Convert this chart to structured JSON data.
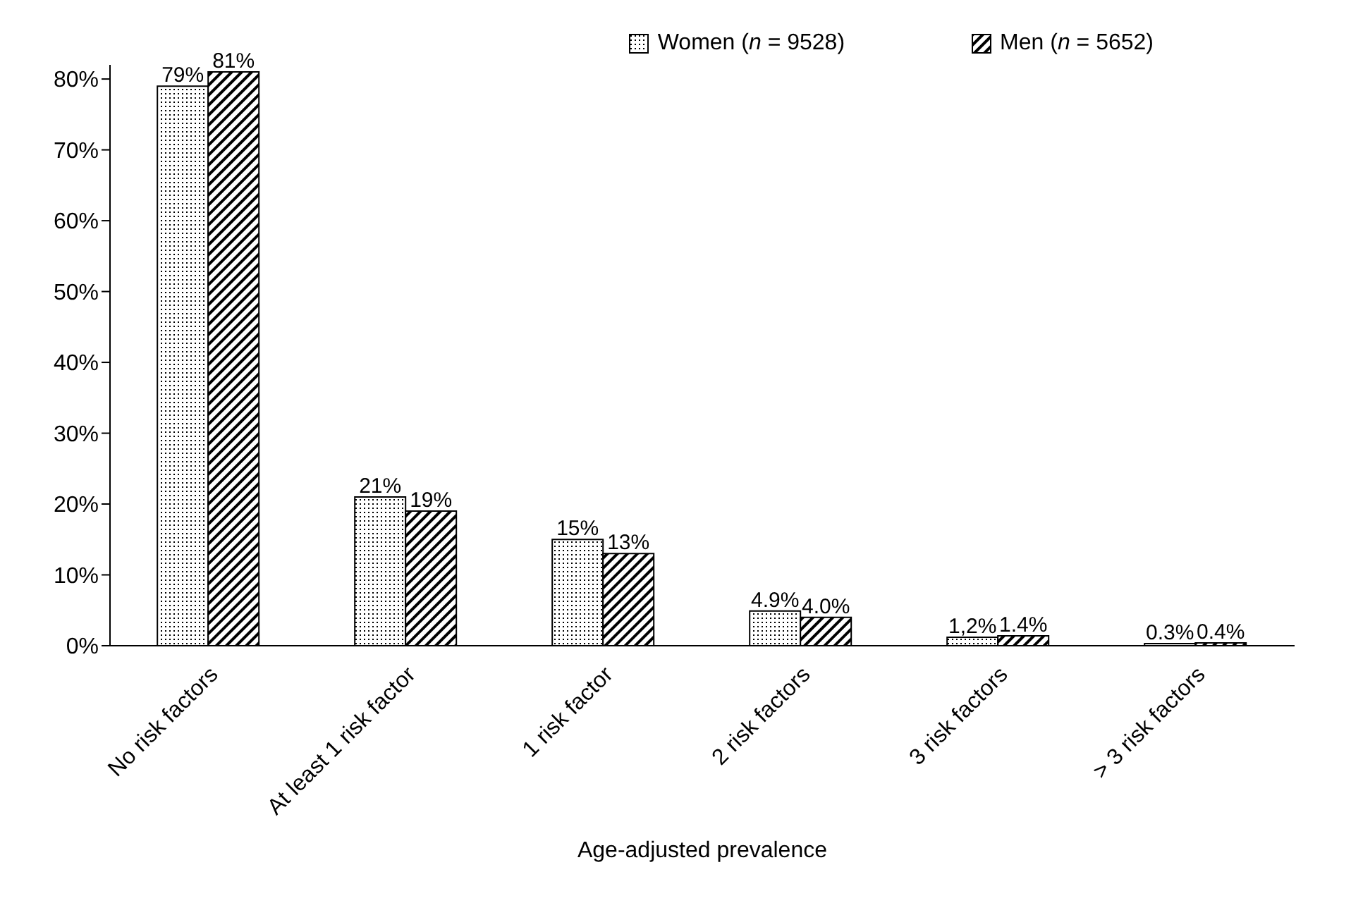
{
  "chart_data": {
    "type": "bar",
    "categories": [
      "No risk factors",
      "At least 1 risk factor",
      "1 risk factor",
      "2 risk factors",
      "3 risk factors",
      "> 3 risk factors"
    ],
    "series": [
      {
        "name": "Women (n = 9528)",
        "color": "#000000",
        "values": [
          79,
          21,
          15,
          4.9,
          1.2,
          0.3
        ],
        "value_labels": [
          "79%",
          "21%",
          "15%",
          "4.9%",
          "1,2%",
          "0.3%"
        ]
      },
      {
        "name": "Men (n = 5652)",
        "color": "#000000",
        "values": [
          81,
          19,
          13,
          4.0,
          1.4,
          0.4
        ],
        "value_labels": [
          "81%",
          "19%",
          "13%",
          "4.0%",
          "1.4%",
          "0.4%"
        ]
      }
    ],
    "xlabel": "Age-adjusted prevalence",
    "ylim": [
      0,
      82
    ],
    "yticks": [
      {
        "value": 0,
        "label": "0%"
      },
      {
        "value": 10,
        "label": "10%"
      },
      {
        "value": 20,
        "label": "20%"
      },
      {
        "value": 30,
        "label": "30%"
      },
      {
        "value": 40,
        "label": "40%"
      },
      {
        "value": 50,
        "label": "50%"
      },
      {
        "value": 60,
        "label": "60%"
      },
      {
        "value": 70,
        "label": "70%"
      },
      {
        "value": 80,
        "label": "80%"
      }
    ],
    "grid": false,
    "legend": "top right"
  }
}
